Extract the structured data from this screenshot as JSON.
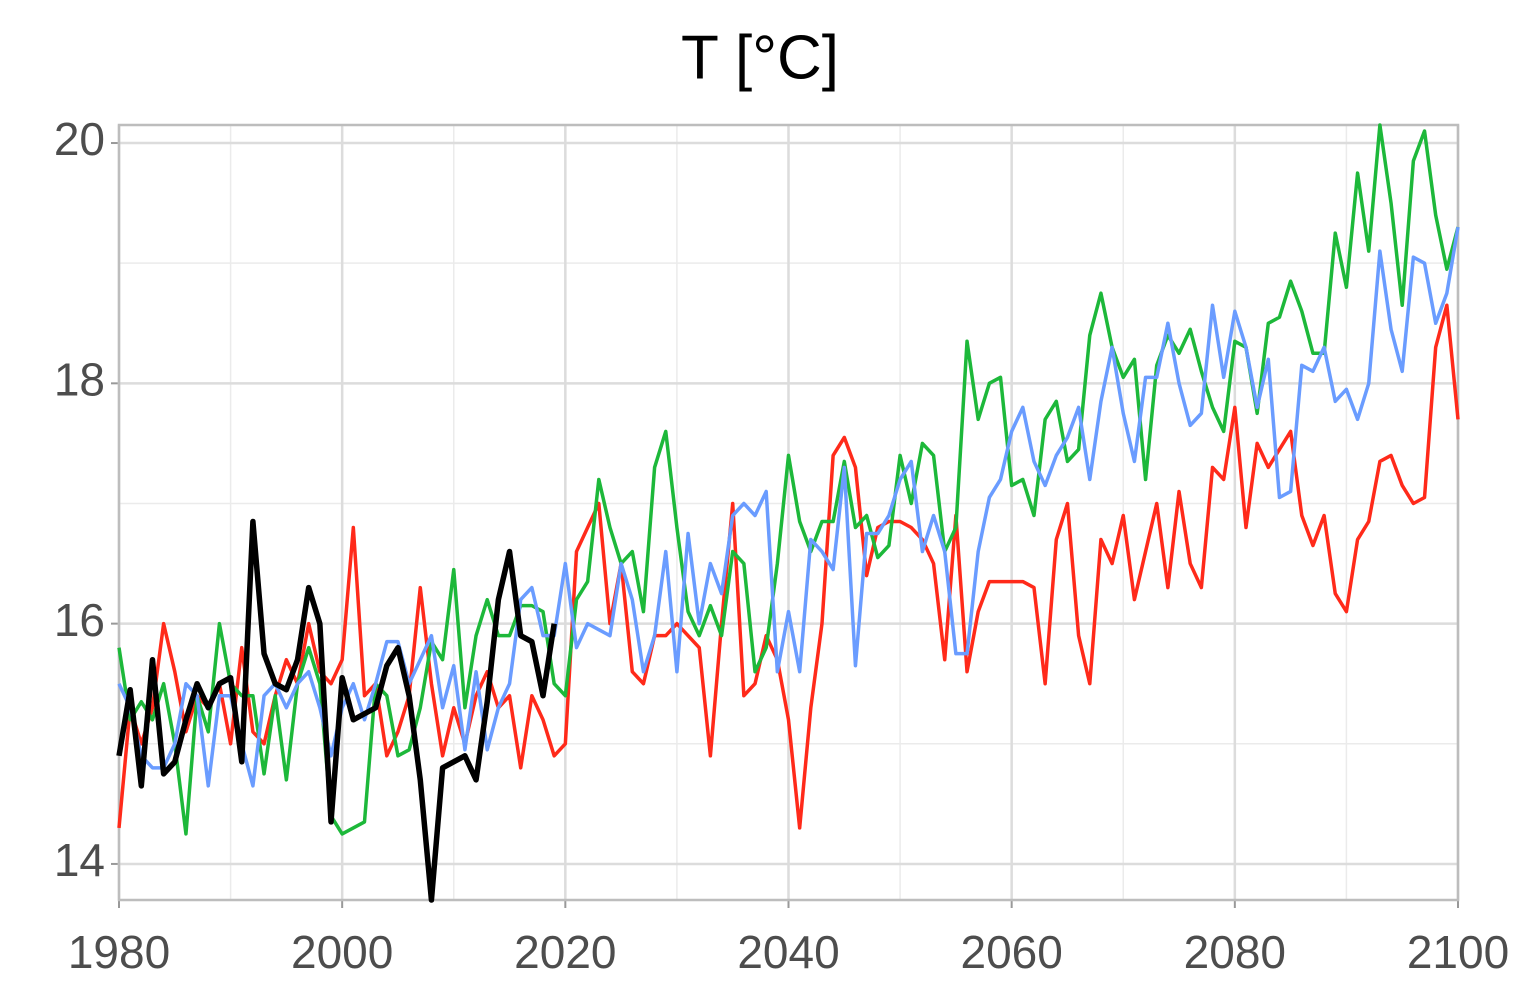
{
  "chart_data": {
    "type": "line",
    "title": "T [°C]",
    "x": [
      1980,
      1981,
      1982,
      1983,
      1984,
      1985,
      1986,
      1987,
      1988,
      1989,
      1990,
      1991,
      1992,
      1993,
      1994,
      1995,
      1996,
      1997,
      1998,
      1999,
      2000,
      2001,
      2002,
      2003,
      2004,
      2005,
      2006,
      2007,
      2008,
      2009,
      2010,
      2011,
      2012,
      2013,
      2014,
      2015,
      2016,
      2017,
      2018,
      2019,
      2020,
      2021,
      2022,
      2023,
      2024,
      2025,
      2026,
      2027,
      2028,
      2029,
      2030,
      2031,
      2032,
      2033,
      2034,
      2035,
      2036,
      2037,
      2038,
      2039,
      2040,
      2041,
      2042,
      2043,
      2044,
      2045,
      2046,
      2047,
      2048,
      2049,
      2050,
      2051,
      2052,
      2053,
      2054,
      2055,
      2056,
      2057,
      2058,
      2059,
      2060,
      2061,
      2062,
      2063,
      2064,
      2065,
      2066,
      2067,
      2068,
      2069,
      2070,
      2071,
      2072,
      2073,
      2074,
      2075,
      2076,
      2077,
      2078,
      2079,
      2080,
      2081,
      2082,
      2083,
      2084,
      2085,
      2086,
      2087,
      2088,
      2089,
      2090,
      2091,
      2092,
      2093,
      2094,
      2095,
      2096,
      2097,
      2098,
      2099,
      2100
    ],
    "series": [
      {
        "color": "#ff2a1a",
        "width": 3.5,
        "values": [
          14.3,
          15.3,
          15.0,
          15.3,
          16.0,
          15.6,
          15.1,
          15.4,
          15.3,
          15.5,
          15.0,
          15.8,
          15.1,
          15.0,
          15.4,
          15.7,
          15.5,
          16.0,
          15.6,
          15.5,
          15.7,
          16.8,
          15.4,
          15.5,
          14.9,
          15.1,
          15.4,
          16.3,
          15.5,
          14.9,
          15.3,
          15.0,
          15.4,
          15.6,
          15.3,
          15.4,
          14.8,
          15.4,
          15.2,
          14.9,
          15.0,
          16.6,
          16.8,
          17.0,
          16.0,
          16.5,
          15.6,
          15.5,
          15.9,
          15.9,
          16.0,
          15.9,
          15.8,
          14.9,
          16.0,
          17.0,
          15.4,
          15.5,
          15.9,
          15.7,
          15.2,
          14.3,
          15.3,
          16.0,
          17.4,
          17.55,
          17.3,
          16.4,
          16.8,
          16.85,
          16.85,
          16.8,
          16.7,
          16.5,
          15.7,
          16.9,
          15.6,
          16.1,
          16.35,
          16.35,
          16.35,
          16.35,
          16.3,
          15.5,
          16.7,
          17.0,
          15.9,
          15.5,
          16.7,
          16.5,
          16.9,
          16.2,
          16.6,
          17.0,
          16.3,
          17.1,
          16.5,
          16.3,
          17.3,
          17.2,
          17.8,
          16.8,
          17.5,
          17.3,
          17.45,
          17.6,
          16.9,
          16.65,
          16.9,
          16.25,
          16.1,
          16.7,
          16.85,
          17.35,
          17.4,
          17.15,
          17.0,
          17.05,
          18.3,
          18.65,
          17.7
        ]
      },
      {
        "color": "#1db83a",
        "width": 3.5,
        "values": [
          15.8,
          15.2,
          15.35,
          15.2,
          15.5,
          15.0,
          14.25,
          15.4,
          15.1,
          16.0,
          15.5,
          15.4,
          15.4,
          14.75,
          15.4,
          14.7,
          15.5,
          15.8,
          15.5,
          14.4,
          14.25,
          14.3,
          14.35,
          15.5,
          15.4,
          14.9,
          14.95,
          15.3,
          15.85,
          15.7,
          16.45,
          15.3,
          15.9,
          16.2,
          15.9,
          15.9,
          16.15,
          16.15,
          16.1,
          15.5,
          15.4,
          16.2,
          16.35,
          17.2,
          16.8,
          16.5,
          16.6,
          16.1,
          17.3,
          17.6,
          16.8,
          16.1,
          15.9,
          16.15,
          15.9,
          16.6,
          16.5,
          15.6,
          15.8,
          16.5,
          17.4,
          16.85,
          16.6,
          16.85,
          16.85,
          17.35,
          16.8,
          16.9,
          16.55,
          16.65,
          17.4,
          17.0,
          17.5,
          17.4,
          16.6,
          16.8,
          18.35,
          17.7,
          18.0,
          18.05,
          17.15,
          17.2,
          16.9,
          17.7,
          17.85,
          17.35,
          17.45,
          18.4,
          18.75,
          18.3,
          18.05,
          18.2,
          17.2,
          18.15,
          18.4,
          18.25,
          18.45,
          18.1,
          17.8,
          17.6,
          18.35,
          18.3,
          17.75,
          18.5,
          18.55,
          18.85,
          18.6,
          18.25,
          18.25,
          19.25,
          18.8,
          19.75,
          19.1,
          20.15,
          19.5,
          18.65,
          19.85,
          20.1,
          19.4,
          18.95,
          19.3
        ]
      },
      {
        "color": "#6a9cff",
        "width": 3.5,
        "values": [
          15.5,
          15.3,
          14.9,
          14.8,
          14.8,
          15.0,
          15.5,
          15.4,
          14.65,
          15.4,
          15.4,
          15.0,
          14.65,
          15.4,
          15.5,
          15.3,
          15.5,
          15.6,
          15.3,
          14.9,
          15.3,
          15.5,
          15.2,
          15.5,
          15.85,
          15.85,
          15.5,
          15.7,
          15.9,
          15.3,
          15.65,
          14.95,
          15.6,
          14.95,
          15.3,
          15.5,
          16.2,
          16.3,
          15.9,
          15.9,
          16.5,
          15.8,
          16.0,
          15.95,
          15.9,
          16.5,
          16.2,
          15.6,
          15.9,
          16.6,
          15.6,
          16.75,
          16.0,
          16.5,
          16.25,
          16.9,
          17.0,
          16.9,
          17.1,
          15.6,
          16.1,
          15.6,
          16.7,
          16.6,
          16.45,
          17.3,
          15.65,
          16.75,
          16.75,
          16.9,
          17.2,
          17.35,
          16.6,
          16.9,
          16.6,
          15.75,
          15.75,
          16.6,
          17.05,
          17.2,
          17.6,
          17.8,
          17.35,
          17.15,
          17.4,
          17.55,
          17.8,
          17.2,
          17.85,
          18.3,
          17.75,
          17.35,
          18.05,
          18.05,
          18.5,
          18.0,
          17.65,
          17.75,
          18.65,
          18.05,
          18.6,
          18.3,
          17.8,
          18.2,
          17.05,
          17.1,
          18.15,
          18.1,
          18.3,
          17.85,
          17.95,
          17.7,
          18.0,
          19.1,
          18.45,
          18.1,
          19.05,
          19.0,
          18.5,
          18.75,
          19.3
        ]
      },
      {
        "color": "#000000",
        "width": 5.5,
        "values": [
          14.9,
          15.45,
          14.65,
          15.7,
          14.75,
          14.85,
          15.2,
          15.5,
          15.3,
          15.5,
          15.55,
          14.85,
          16.85,
          15.75,
          15.5,
          15.45,
          15.7,
          16.3,
          16.0,
          14.35,
          15.55,
          15.2,
          15.25,
          15.3,
          15.65,
          15.8,
          15.4,
          14.7,
          13.7,
          14.8,
          14.85,
          14.9,
          14.7,
          15.35,
          16.2,
          16.6,
          15.9,
          15.85,
          15.4,
          16.0,
          null,
          null,
          null,
          null,
          null,
          null,
          null,
          null,
          null,
          null,
          null,
          null,
          null,
          null,
          null,
          null,
          null,
          null,
          null,
          null,
          null,
          null,
          null,
          null,
          null,
          null,
          null,
          null,
          null,
          null,
          null,
          null,
          null,
          null,
          null,
          null,
          null,
          null,
          null,
          null,
          null,
          null,
          null,
          null,
          null,
          null,
          null,
          null,
          null,
          null,
          null,
          null,
          null,
          null,
          null,
          null,
          null,
          null,
          null,
          null,
          null,
          null,
          null,
          null,
          null,
          null,
          null,
          null,
          null,
          null,
          null,
          null,
          null,
          null,
          null,
          null,
          null,
          null,
          null,
          null,
          null
        ]
      }
    ],
    "xlim": [
      1980,
      2100
    ],
    "xticks": [
      1980,
      2000,
      2020,
      2040,
      2060,
      2080,
      2100
    ],
    "x_minor_grid": [
      1990,
      2010,
      2030,
      2050,
      2070,
      2090
    ],
    "ylim": [
      13.7,
      20.15
    ],
    "yticks": [
      14,
      16,
      18,
      20
    ],
    "y_minor_grid": [
      15,
      17,
      19
    ],
    "grid": true
  }
}
